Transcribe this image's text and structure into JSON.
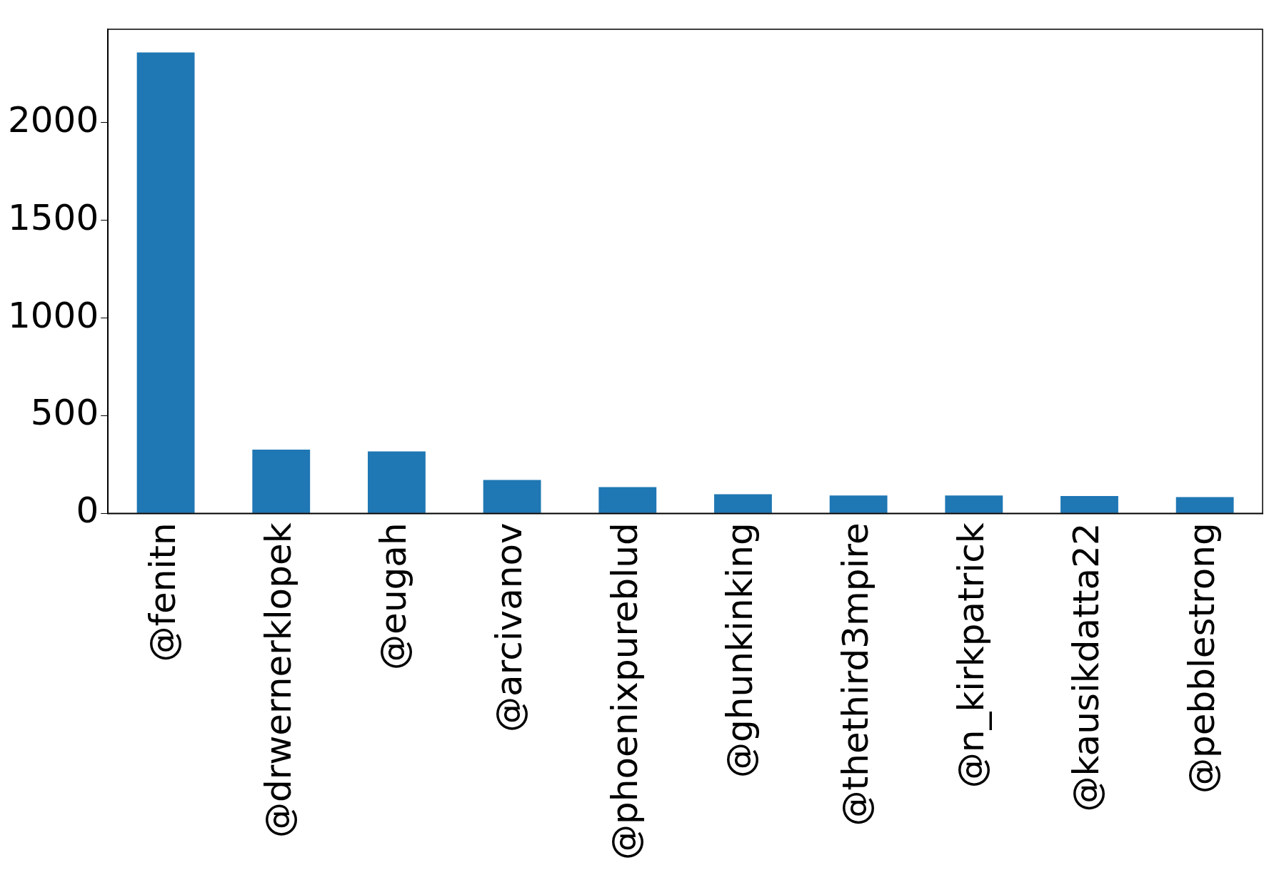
{
  "chart_data": {
    "type": "bar",
    "categories": [
      "@fenitn",
      "@drwernerklopek",
      "@eugah",
      "@arcivanov",
      "@phoenixpureblud",
      "@ghunkinking",
      "@thethird3mpire",
      "@n_kirkpatrick",
      "@kausikdatta22",
      "@pebblestrong"
    ],
    "values": [
      2359,
      326,
      317,
      171,
      135,
      98,
      92,
      92,
      89,
      83
    ],
    "color": "#1f77b4",
    "ylim": [
      0,
      2478
    ],
    "yticks": [
      0,
      500,
      1000,
      1500,
      2000
    ],
    "grid": false,
    "legend": false
  }
}
